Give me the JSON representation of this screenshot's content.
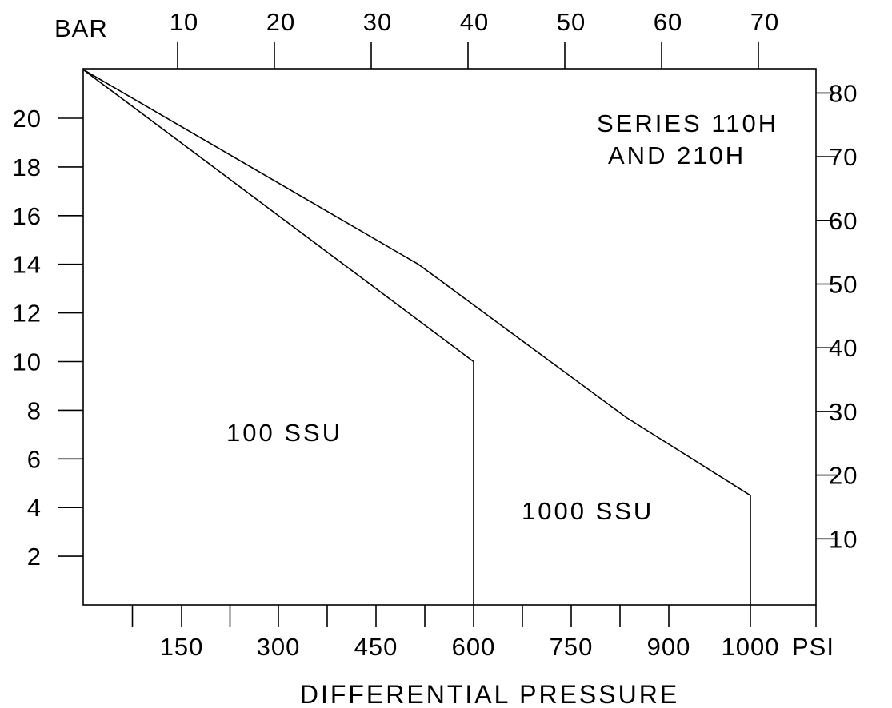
{
  "chart_data": {
    "type": "line",
    "xlabel": "DIFFERENTIAL PRESSURE",
    "x_unit": "PSI",
    "x2_unit": "BAR",
    "xlim": [
      0,
      1000
    ],
    "ylim": [
      0,
      22
    ],
    "x_ticks": [
      150,
      300,
      450,
      600,
      750,
      900,
      1000
    ],
    "x_minor_ticks": [
      75,
      225,
      375,
      525,
      675,
      825,
      1125
    ],
    "x2_ticks": [
      10,
      20,
      30,
      40,
      50,
      60,
      70
    ],
    "y_ticks": [
      2,
      4,
      6,
      8,
      10,
      12,
      14,
      16,
      18,
      20
    ],
    "y2_ticks": [
      10,
      20,
      30,
      40,
      50,
      60,
      70,
      80
    ],
    "grid": false,
    "legend": "none",
    "annotations": [
      {
        "line1": "SERIES 110H",
        "line2": "AND 210H"
      },
      {
        "text": "100 SSU"
      },
      {
        "text": "1000 SSU"
      }
    ],
    "series": [
      {
        "label": "100 SSU",
        "x": [
          0,
          600,
          600
        ],
        "y": [
          22,
          10,
          0
        ]
      },
      {
        "label": "1000 SSU",
        "x": [
          0,
          515,
          835,
          1000,
          1000
        ],
        "y": [
          22,
          14,
          7.7,
          4.5,
          0
        ]
      }
    ]
  }
}
